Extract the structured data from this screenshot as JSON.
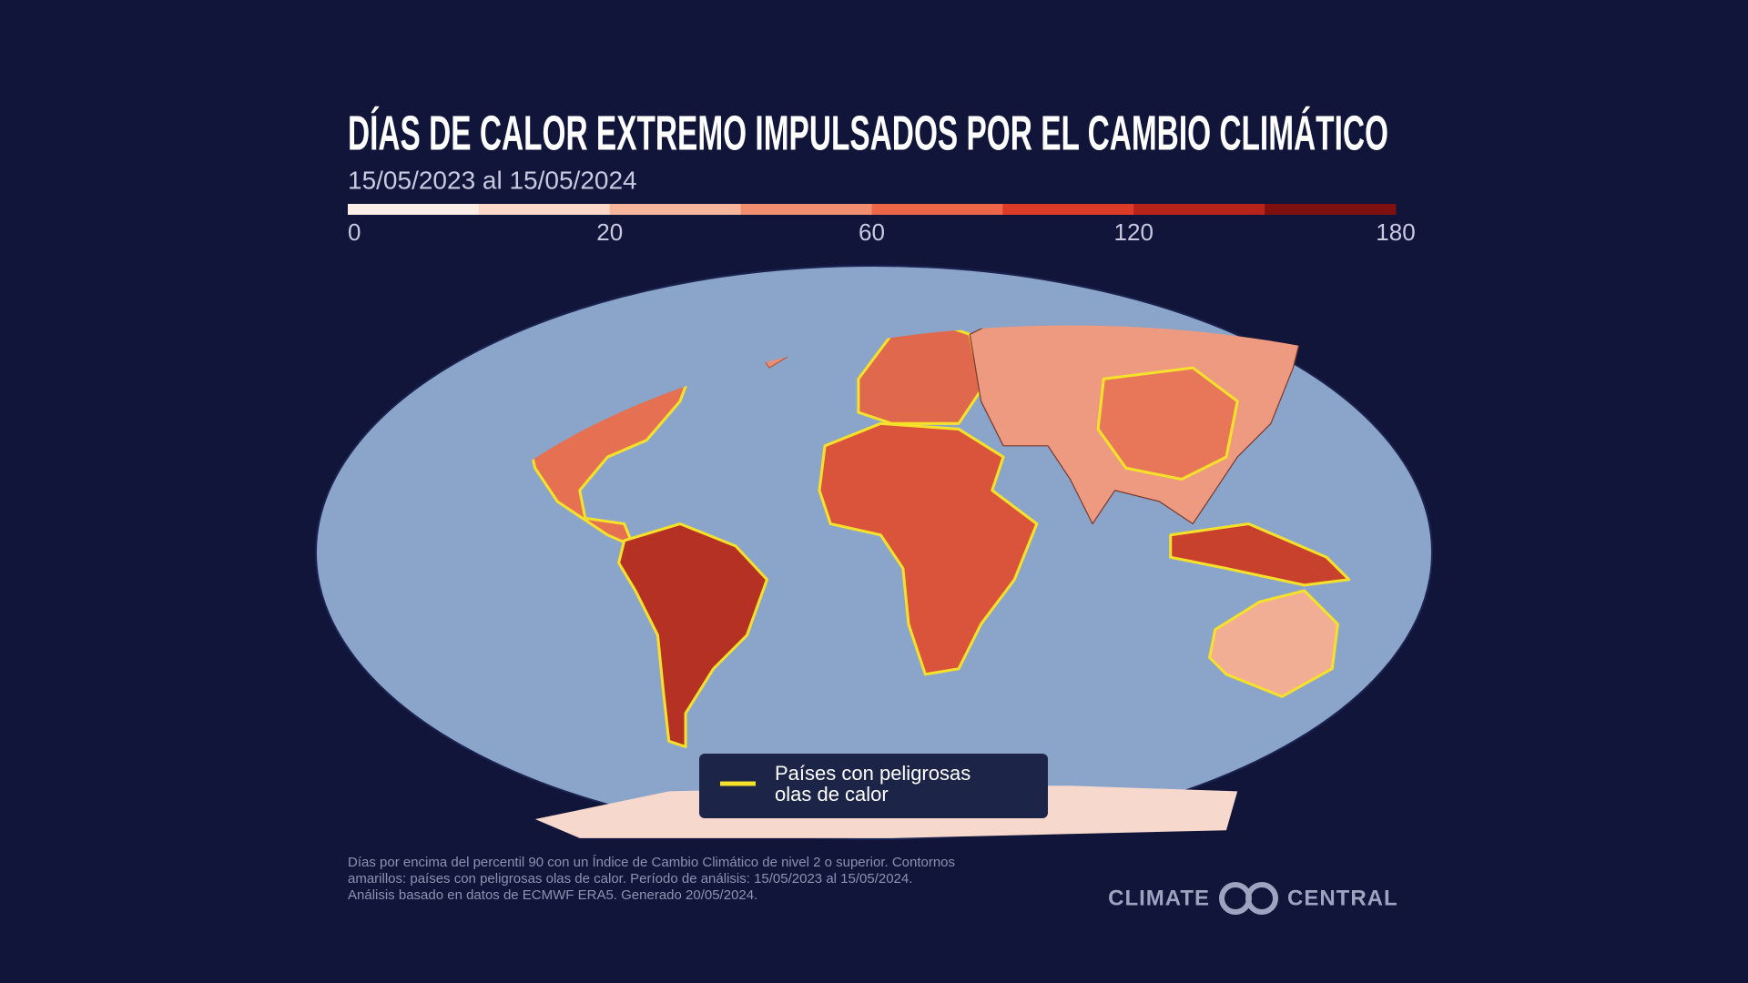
{
  "title": "DÍAS DE CALOR EXTREMO IMPULSADOS POR EL CAMBIO CLIMÁTICO",
  "subtitle": "15/05/2023 al 15/05/2024",
  "colorbar": {
    "colors": [
      "#fbeee7",
      "#fcd9c8",
      "#f7b59b",
      "#f28e70",
      "#ec6647",
      "#dc3b27",
      "#b72319",
      "#7f1010"
    ],
    "ticks": [
      0,
      20,
      60,
      120,
      180
    ]
  },
  "legend": {
    "label_lines": [
      "Países con peligrosas",
      "olas de calor"
    ],
    "color": "#f5e12a"
  },
  "footnote": [
    "Días por encima del percentil 90 con un Índice de Cambio Climático de nivel 2 o superior. Contornos",
    "amarillos: países con peligrosas olas de calor. Período de análisis: 15/05/2023 al 15/05/2024.",
    "Análisis basado en datos de ECMWF ERA5. Generado 20/05/2024."
  ],
  "logo": {
    "left": "CLIMATE",
    "right": "CENTRAL"
  }
}
